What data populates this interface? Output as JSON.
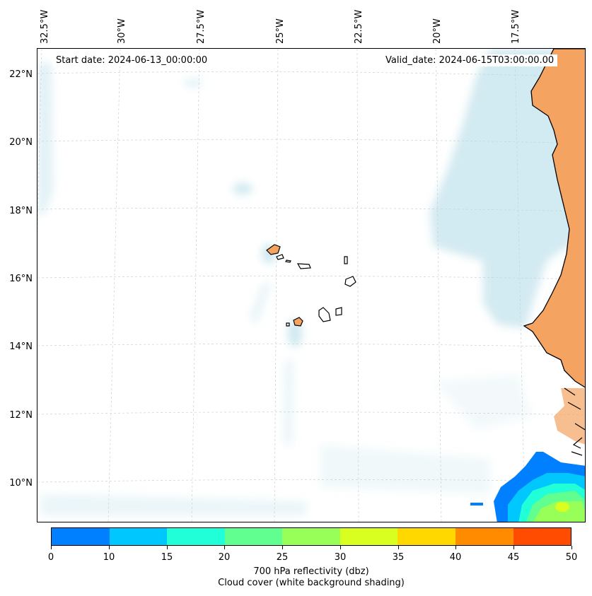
{
  "map": {
    "start_date": "Start date: 2024-06-13_00:00:00",
    "valid_date": "Valid_date: 2024-06-15T03:00:00.00",
    "lon_labels": [
      "32.5°W",
      "30°W",
      "27.5°W",
      "25°W",
      "22.5°W",
      "20°W",
      "17.5°W"
    ],
    "lat_labels": [
      "22°N",
      "20°N",
      "18°N",
      "16°N",
      "14°N",
      "12°N",
      "10°N"
    ],
    "land_color": "#f4a460",
    "cloud_color": "#add8e6",
    "coastline_color": "#000000",
    "gridlines": true
  },
  "colorbar": {
    "title_line1": "700 hPa reflectivity (dbz)",
    "title_line2": "Cloud cover (white background shading)",
    "ticks": [
      "0",
      "10",
      "15",
      "20",
      "25",
      "30",
      "35",
      "40",
      "45",
      "50"
    ],
    "colors": [
      "#0080ff",
      "#00c8ff",
      "#20ffd8",
      "#60ff90",
      "#98ff58",
      "#d8ff20",
      "#ffd800",
      "#ff8c00",
      "#ff4c00"
    ]
  }
}
